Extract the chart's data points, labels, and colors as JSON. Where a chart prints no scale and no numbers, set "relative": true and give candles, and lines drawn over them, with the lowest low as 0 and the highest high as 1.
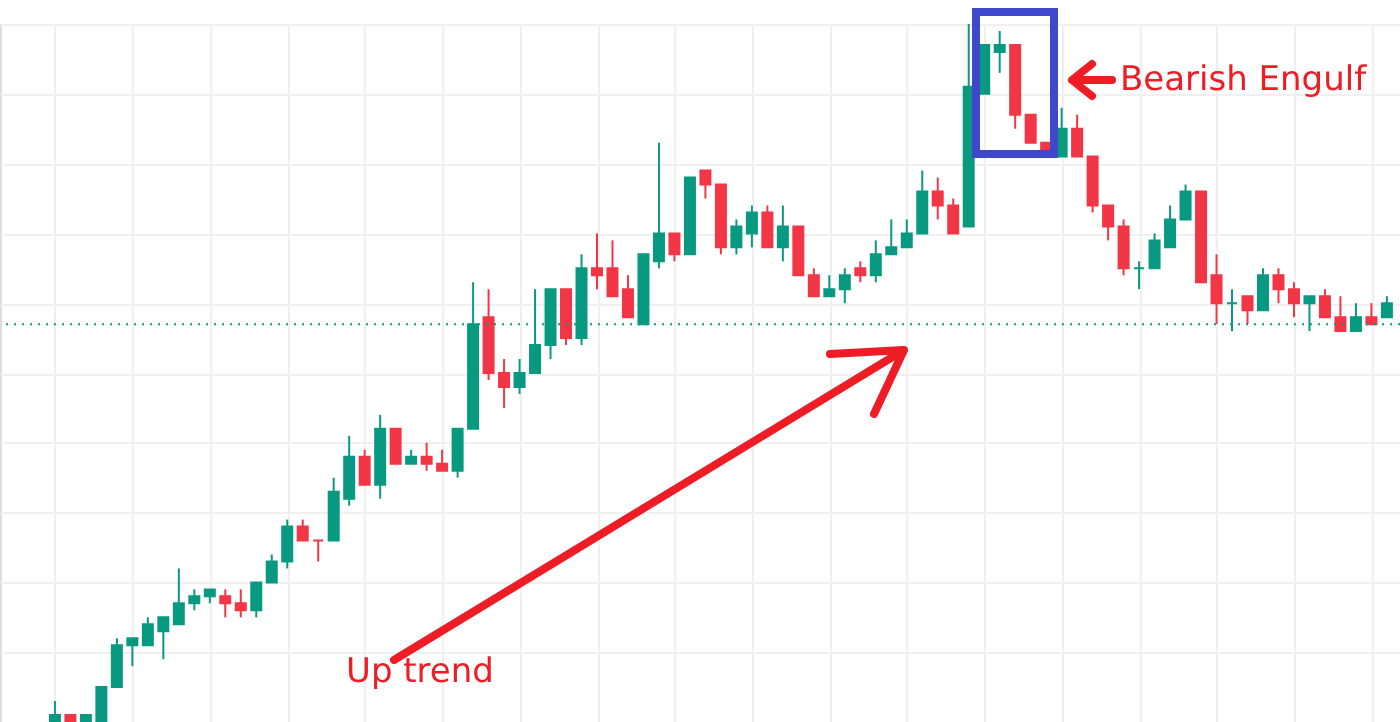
{
  "chart_data": {
    "type": "candlestick",
    "relative": true,
    "grid": true,
    "categories": [
      null,
      null,
      null,
      null,
      null,
      null,
      null,
      null,
      null,
      null,
      null,
      null,
      null,
      null,
      null,
      null,
      null,
      null,
      null,
      null,
      null,
      null,
      null,
      null,
      null,
      null,
      null,
      null,
      null,
      null,
      null,
      null,
      null,
      null,
      null,
      null,
      null,
      null,
      null,
      null,
      null,
      null,
      null,
      null,
      null,
      null,
      null,
      null,
      null,
      null,
      null,
      null,
      null,
      null,
      null,
      null,
      null,
      null,
      null,
      null,
      null,
      null,
      null,
      null,
      null,
      null,
      null,
      null,
      null,
      null,
      null,
      null,
      null,
      null,
      null,
      null,
      null,
      null,
      null,
      null,
      null,
      null,
      null,
      null,
      null,
      null,
      null
    ],
    "ohlc": [
      [
        0,
        0.03,
        0,
        0.01
      ],
      [
        0.01,
        0.01,
        0,
        0
      ],
      [
        0,
        0.01,
        0,
        0.01
      ],
      [
        0,
        0.05,
        0,
        0.05
      ],
      [
        0.05,
        0.12,
        0.05,
        0.11
      ],
      [
        0.11,
        0.12,
        0.08,
        0.12
      ],
      [
        0.11,
        0.15,
        0.11,
        0.14
      ],
      [
        0.13,
        0.15,
        0.09,
        0.15
      ],
      [
        0.14,
        0.22,
        0.14,
        0.17
      ],
      [
        0.17,
        0.19,
        0.16,
        0.18
      ],
      [
        0.18,
        0.19,
        0.17,
        0.19
      ],
      [
        0.18,
        0.19,
        0.15,
        0.17
      ],
      [
        0.17,
        0.19,
        0.15,
        0.16
      ],
      [
        0.16,
        0.2,
        0.15,
        0.2
      ],
      [
        0.2,
        0.24,
        0.2,
        0.23
      ],
      [
        0.23,
        0.29,
        0.22,
        0.28
      ],
      [
        0.28,
        0.29,
        0.26,
        0.26
      ],
      [
        0.26,
        0.26,
        0.23,
        0.26
      ],
      [
        0.26,
        0.35,
        0.26,
        0.33
      ],
      [
        0.32,
        0.41,
        0.31,
        0.38
      ],
      [
        0.38,
        0.39,
        0.34,
        0.34
      ],
      [
        0.34,
        0.44,
        0.32,
        0.42
      ],
      [
        0.42,
        0.42,
        0.37,
        0.37
      ],
      [
        0.37,
        0.39,
        0.37,
        0.38
      ],
      [
        0.38,
        0.4,
        0.36,
        0.37
      ],
      [
        0.37,
        0.39,
        0.36,
        0.36
      ],
      [
        0.36,
        0.42,
        0.35,
        0.42
      ],
      [
        0.42,
        0.63,
        0.42,
        0.57
      ],
      [
        0.58,
        0.62,
        0.49,
        0.5
      ],
      [
        0.5,
        0.52,
        0.45,
        0.48
      ],
      [
        0.48,
        0.52,
        0.47,
        0.5
      ],
      [
        0.5,
        0.62,
        0.5,
        0.54
      ],
      [
        0.54,
        0.62,
        0.52,
        0.62
      ],
      [
        0.62,
        0.62,
        0.54,
        0.55
      ],
      [
        0.55,
        0.67,
        0.54,
        0.65
      ],
      [
        0.65,
        0.7,
        0.62,
        0.64
      ],
      [
        0.65,
        0.69,
        0.61,
        0.61
      ],
      [
        0.62,
        0.64,
        0.58,
        0.58
      ],
      [
        0.57,
        0.67,
        0.57,
        0.67
      ],
      [
        0.66,
        0.83,
        0.65,
        0.7
      ],
      [
        0.7,
        0.7,
        0.66,
        0.67
      ],
      [
        0.67,
        0.78,
        0.67,
        0.78
      ],
      [
        0.79,
        0.79,
        0.75,
        0.77
      ],
      [
        0.77,
        0.77,
        0.67,
        0.68
      ],
      [
        0.68,
        0.72,
        0.67,
        0.71
      ],
      [
        0.7,
        0.74,
        0.68,
        0.73
      ],
      [
        0.73,
        0.74,
        0.68,
        0.68
      ],
      [
        0.68,
        0.74,
        0.66,
        0.71
      ],
      [
        0.71,
        0.71,
        0.64,
        0.64
      ],
      [
        0.64,
        0.65,
        0.61,
        0.61
      ],
      [
        0.61,
        0.64,
        0.61,
        0.62
      ],
      [
        0.62,
        0.65,
        0.6,
        0.64
      ],
      [
        0.65,
        0.66,
        0.63,
        0.64
      ],
      [
        0.64,
        0.69,
        0.63,
        0.67
      ],
      [
        0.67,
        0.72,
        0.67,
        0.68
      ],
      [
        0.68,
        0.72,
        0.68,
        0.7
      ],
      [
        0.7,
        0.79,
        0.7,
        0.76
      ],
      [
        0.76,
        0.78,
        0.72,
        0.74
      ],
      [
        0.74,
        0.75,
        0.7,
        0.7
      ],
      [
        0.71,
        1,
        0.71,
        0.91
      ],
      [
        0.9,
        0.97,
        0.9,
        0.97
      ],
      [
        0.96,
        0.99,
        0.93,
        0.97
      ],
      [
        0.97,
        0.97,
        0.85,
        0.87
      ],
      [
        0.87,
        0.87,
        0.83,
        0.83
      ],
      [
        0.83,
        0.83,
        0.82,
        0.82
      ],
      [
        0.81,
        0.88,
        0.81,
        0.85
      ],
      [
        0.85,
        0.87,
        0.81,
        0.81
      ],
      [
        0.81,
        0.81,
        0.73,
        0.74
      ],
      [
        0.74,
        0.74,
        0.69,
        0.71
      ],
      [
        0.71,
        0.72,
        0.64,
        0.65
      ],
      [
        0.65,
        0.66,
        0.62,
        0.65
      ],
      [
        0.65,
        0.7,
        0.65,
        0.69
      ],
      [
        0.68,
        0.74,
        0.68,
        0.72
      ],
      [
        0.72,
        0.77,
        0.72,
        0.76
      ],
      [
        0.76,
        0.76,
        0.63,
        0.63
      ],
      [
        0.64,
        0.67,
        0.57,
        0.6
      ],
      [
        0.6,
        0.62,
        0.56,
        0.6
      ],
      [
        0.61,
        0.61,
        0.57,
        0.59
      ],
      [
        0.59,
        0.65,
        0.59,
        0.64
      ],
      [
        0.64,
        0.65,
        0.6,
        0.62
      ],
      [
        0.62,
        0.63,
        0.58,
        0.6
      ],
      [
        0.6,
        0.61,
        0.56,
        0.61
      ],
      [
        0.61,
        0.62,
        0.58,
        0.58
      ],
      [
        0.58,
        0.61,
        0.56,
        0.56
      ],
      [
        0.56,
        0.6,
        0.56,
        0.58
      ],
      [
        0.58,
        0.6,
        0.57,
        0.57
      ],
      [
        0.58,
        0.61,
        0.58,
        0.6
      ]
    ],
    "colors": [
      "#089981",
      "#f23645",
      "#089981",
      "#089981",
      "#089981",
      "#089981",
      "#089981",
      "#089981",
      "#089981",
      "#089981",
      "#089981",
      "#f23645",
      "#f23645",
      "#089981",
      "#089981",
      "#089981",
      "#f23645",
      "#f23645",
      "#089981",
      "#089981",
      "#f23645",
      "#089981",
      "#f23645",
      "#089981",
      "#f23645",
      "#f23645",
      "#089981",
      "#089981",
      "#f23645",
      "#f23645",
      "#089981",
      "#089981",
      "#089981",
      "#f23645",
      "#089981",
      "#f23645",
      "#f23645",
      "#f23645",
      "#089981",
      "#089981",
      "#f23645",
      "#089981",
      "#f23645",
      "#f23645",
      "#089981",
      "#089981",
      "#f23645",
      "#089981",
      "#f23645",
      "#f23645",
      "#089981",
      "#089981",
      "#f23645",
      "#089981",
      "#089981",
      "#089981",
      "#089981",
      "#f23645",
      "#f23645",
      "#089981",
      "#089981",
      "#089981",
      "#f23645",
      "#f23645",
      "#f23645",
      "#089981",
      "#f23645",
      "#f23645",
      "#f23645",
      "#f23645",
      "#089981",
      "#089981",
      "#089981",
      "#089981",
      "#f23645",
      "#f23645",
      "#089981",
      "#f23645",
      "#089981",
      "#f23645",
      "#f23645",
      "#089981",
      "#f23645",
      "#f23645",
      "#089981",
      "#f23645",
      "#089981"
    ],
    "ref_lines": [
      {
        "axis": "y",
        "value": 0.57,
        "color": "#089981",
        "line_style": "dotted"
      }
    ],
    "annotations": [
      "Bearish Engulf",
      "Up trend"
    ]
  }
}
